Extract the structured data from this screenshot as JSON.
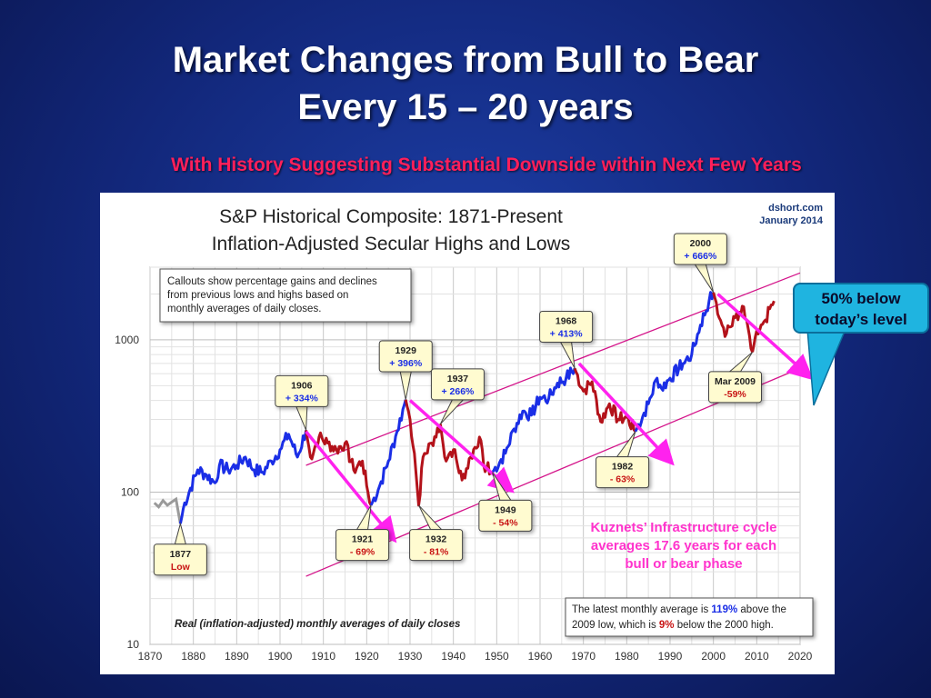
{
  "slide": {
    "title_line1": "Market Changes from Bull to Bear",
    "title_line2": "Every 15 – 20 years",
    "subtitle": "With History Suggesting Substantial Downside within Next Few Years",
    "callout": {
      "line1": "50% below",
      "line2": "today’s level"
    },
    "kuznets": {
      "line1": "Kuznets’ Infrastructure cycle",
      "line2": "averages 17.6 years for each",
      "line3": "bull or bear phase"
    }
  },
  "chart_data": {
    "type": "line",
    "title_line1": "S&P Historical Composite: 1871-Present",
    "title_line2": "Inflation-Adjusted Secular Highs and Lows",
    "source": "dshort.com",
    "date": "January 2014",
    "note": [
      "Callouts show percentage gains and declines",
      "from previous lows and highs based on",
      "monthly  averages of daily closes."
    ],
    "footnote": "Real (inflation-adjusted) monthly averages of daily closes",
    "summary": {
      "line1_pre": "The latest monthly average is ",
      "line1_val": "119%",
      "line1_post": " above the",
      "line2_pre": "2009  low, which is ",
      "line2_val": "9%",
      "line2_post": " below the 2000 high."
    },
    "x_axis": {
      "min": 1870,
      "max": 2020,
      "ticks": [
        "1870",
        "1880",
        "1890",
        "1900",
        "1910",
        "1920",
        "1930",
        "1940",
        "1950",
        "1960",
        "1970",
        "1980",
        "1990",
        "2000",
        "2010",
        "2020"
      ]
    },
    "y_axis": {
      "scale": "log",
      "min": 10,
      "max": 3000,
      "ticks": [
        "10",
        "100",
        "1000"
      ]
    },
    "grid": true,
    "series": [
      {
        "phase": "bull",
        "color": "#1a2ee6",
        "points": [
          [
            1877,
            62
          ],
          [
            1878,
            85
          ],
          [
            1881,
            140
          ],
          [
            1883,
            130
          ],
          [
            1885,
            115
          ],
          [
            1886,
            150
          ],
          [
            1888,
            140
          ],
          [
            1890,
            150
          ],
          [
            1892,
            170
          ],
          [
            1894,
            140
          ],
          [
            1896,
            135
          ],
          [
            1898,
            160
          ],
          [
            1900,
            190
          ],
          [
            1902,
            240
          ],
          [
            1904,
            170
          ],
          [
            1906,
            255
          ]
        ]
      },
      {
        "phase": "bear",
        "color": "#b3121a",
        "points": [
          [
            1906,
            255
          ],
          [
            1907,
            170
          ],
          [
            1909,
            230
          ],
          [
            1911,
            210
          ],
          [
            1913,
            190
          ],
          [
            1915,
            210
          ],
          [
            1917,
            140
          ],
          [
            1919,
            160
          ],
          [
            1920,
            110
          ],
          [
            1921,
            82
          ]
        ]
      },
      {
        "phase": "bull",
        "color": "#1a2ee6",
        "points": [
          [
            1921,
            82
          ],
          [
            1923,
            110
          ],
          [
            1925,
            160
          ],
          [
            1927,
            250
          ],
          [
            1929,
            405
          ]
        ]
      },
      {
        "phase": "bear",
        "color": "#b3121a",
        "points": [
          [
            1929,
            405
          ],
          [
            1930,
            300
          ],
          [
            1931,
            180
          ],
          [
            1932,
            82
          ],
          [
            1933,
            170
          ],
          [
            1935,
            210
          ],
          [
            1937,
            280
          ]
        ]
      },
      {
        "phase": "bear",
        "color": "#b3121a",
        "points": [
          [
            1937,
            280
          ],
          [
            1938,
            170
          ],
          [
            1940,
            190
          ],
          [
            1942,
            120
          ],
          [
            1944,
            170
          ],
          [
            1946,
            230
          ],
          [
            1947,
            150
          ],
          [
            1949,
            135
          ]
        ]
      },
      {
        "phase": "bull",
        "color": "#1a2ee6",
        "points": [
          [
            1949,
            135
          ],
          [
            1952,
            180
          ],
          [
            1954,
            260
          ],
          [
            1956,
            340
          ],
          [
            1958,
            320
          ],
          [
            1960,
            420
          ],
          [
            1962,
            410
          ],
          [
            1964,
            520
          ],
          [
            1966,
            560
          ],
          [
            1968,
            650
          ]
        ]
      },
      {
        "phase": "bear",
        "color": "#b3121a",
        "points": [
          [
            1968,
            650
          ],
          [
            1970,
            460
          ],
          [
            1972,
            530
          ],
          [
            1974,
            290
          ],
          [
            1976,
            380
          ],
          [
            1978,
            300
          ],
          [
            1980,
            310
          ],
          [
            1982,
            250
          ]
        ]
      },
      {
        "phase": "bull",
        "color": "#1a2ee6",
        "points": [
          [
            1982,
            250
          ],
          [
            1985,
            380
          ],
          [
            1987,
            560
          ],
          [
            1988,
            480
          ],
          [
            1990,
            560
          ],
          [
            1993,
            700
          ],
          [
            1995,
            800
          ],
          [
            1997,
            1250
          ],
          [
            1999,
            1800
          ],
          [
            2000,
            2050
          ]
        ]
      },
      {
        "phase": "bear",
        "color": "#b3121a",
        "points": [
          [
            2000,
            2050
          ],
          [
            2002,
            1250
          ],
          [
            2003,
            1100
          ],
          [
            2005,
            1400
          ],
          [
            2007,
            1650
          ],
          [
            2008,
            1200
          ],
          [
            2009,
            830
          ]
        ]
      },
      {
        "phase": "bear",
        "color": "#b3121a",
        "points": [
          [
            2009,
            830
          ],
          [
            2010,
            1150
          ],
          [
            2011,
            1250
          ],
          [
            2012,
            1350
          ],
          [
            2013,
            1600
          ],
          [
            2014,
            1800
          ]
        ]
      }
    ],
    "channel_lines": [
      {
        "from": [
          1906,
          28
        ],
        "to": [
          2020,
          650
        ],
        "color": "#d4148a"
      },
      {
        "from": [
          1906,
          150
        ],
        "to": [
          2020,
          2750
        ],
        "color": "#d4148a"
      }
    ],
    "decline_arrows": [
      {
        "from": [
          1906,
          250
        ],
        "to": [
          1926,
          50
        ]
      },
      {
        "from": [
          1930,
          400
        ],
        "to": [
          1953,
          105
        ]
      },
      {
        "from": [
          1969,
          700
        ],
        "to": [
          1990,
          160
        ]
      },
      {
        "from": [
          2001,
          2000
        ],
        "to": [
          2022,
          580
        ]
      }
    ],
    "annotations": [
      {
        "label": "1877",
        "value": "Low",
        "color": "#c81414",
        "at": [
          1877,
          62
        ],
        "box": [
          1877,
          36
        ],
        "dir": "up"
      },
      {
        "label": "1906",
        "value": "+ 334%",
        "color": "#1a2ee6",
        "at": [
          1906,
          255
        ],
        "box": [
          1905,
          460
        ],
        "dir": "down"
      },
      {
        "label": "1929",
        "value": "+ 396%",
        "color": "#1a2ee6",
        "at": [
          1929,
          405
        ],
        "box": [
          1929,
          780
        ],
        "dir": "down"
      },
      {
        "label": "1937",
        "value": "+ 266%",
        "color": "#1a2ee6",
        "at": [
          1937,
          280
        ],
        "box": [
          1941,
          510
        ],
        "dir": "down"
      },
      {
        "label": "1921",
        "value": "- 69%",
        "color": "#c81414",
        "at": [
          1921,
          82
        ],
        "box": [
          1919,
          45
        ],
        "dir": "up"
      },
      {
        "label": "1932",
        "value": "- 81%",
        "color": "#c81414",
        "at": [
          1932,
          82
        ],
        "box": [
          1936,
          45
        ],
        "dir": "up"
      },
      {
        "label": "1949",
        "value": "- 54%",
        "color": "#c81414",
        "at": [
          1949,
          135
        ],
        "box": [
          1952,
          70
        ],
        "dir": "up"
      },
      {
        "label": "1968",
        "value": "+ 413%",
        "color": "#1a2ee6",
        "at": [
          1968,
          650
        ],
        "box": [
          1966,
          1220
        ],
        "dir": "down"
      },
      {
        "label": "1982",
        "value": "- 63%",
        "color": "#c81414",
        "at": [
          1982,
          250
        ],
        "box": [
          1979,
          135
        ],
        "dir": "up"
      },
      {
        "label": "2000",
        "value": "+ 666%",
        "color": "#1a2ee6",
        "at": [
          2000,
          2050
        ],
        "box": [
          1997,
          3950
        ],
        "dir": "down"
      },
      {
        "label": "Mar 2009",
        "value": "-59%",
        "color": "#c81414",
        "at": [
          2009,
          830
        ],
        "box": [
          2005,
          490
        ],
        "dir": "up"
      }
    ]
  }
}
